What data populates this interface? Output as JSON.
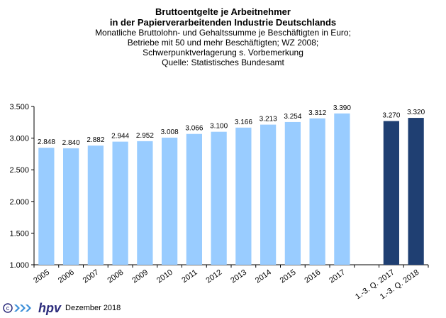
{
  "colors": {
    "bar_light": "#99ccff",
    "bar_dark": "#1f3f72",
    "logo_blue": "#2c2c7c",
    "logo_ring": "#3b8ed8"
  },
  "chart_data": {
    "type": "bar",
    "title_lines": [
      "Bruttoentgelte je Arbeitnehmer",
      "in der Papierverarbeitenden Industrie Deutschlands"
    ],
    "subtitle_lines": [
      "Monatliche Bruttolohn- und Gehaltssumme je Beschäftigten in Euro;",
      "Betriebe mit 50 und mehr Beschäftigten; WZ 2008;",
      "Schwerpunktverlagerung  s. Vorbemerkung",
      "Quelle: Statistisches Bundesamt"
    ],
    "categories": [
      "2005",
      "2006",
      "2007",
      "2008",
      "2009",
      "2010",
      "2011",
      "2012",
      "2013",
      "2014",
      "2015",
      "2016",
      "2017",
      "",
      "1.-3. Q. 2017",
      "1.-3. Q. 2018"
    ],
    "values": [
      2848,
      2840,
      2882,
      2944,
      2952,
      3008,
      3066,
      3100,
      3166,
      3213,
      3254,
      3312,
      3390,
      null,
      3270,
      3320
    ],
    "labels": [
      "2.848",
      "2.840",
      "2.882",
      "2.944",
      "2.952",
      "3.008",
      "3.066",
      "3.100",
      "3.166",
      "3.213",
      "3.254",
      "3.312",
      "3.390",
      "",
      "3.270",
      "3.320"
    ],
    "bar_color_keys": [
      "bar_light",
      "bar_light",
      "bar_light",
      "bar_light",
      "bar_light",
      "bar_light",
      "bar_light",
      "bar_light",
      "bar_light",
      "bar_light",
      "bar_light",
      "bar_light",
      "bar_light",
      "bar_light",
      "bar_dark",
      "bar_dark"
    ],
    "ylim": [
      1000,
      3500
    ],
    "yticks": [
      1000,
      1500,
      2000,
      2500,
      3000,
      3500
    ],
    "ytick_labels": [
      "1.000",
      "1.500",
      "2.000",
      "2.500",
      "3.000",
      "3.500"
    ],
    "grid": false,
    "legend": "none"
  },
  "footer": {
    "logo_text": "hpv",
    "date": "Dezember 2018"
  }
}
